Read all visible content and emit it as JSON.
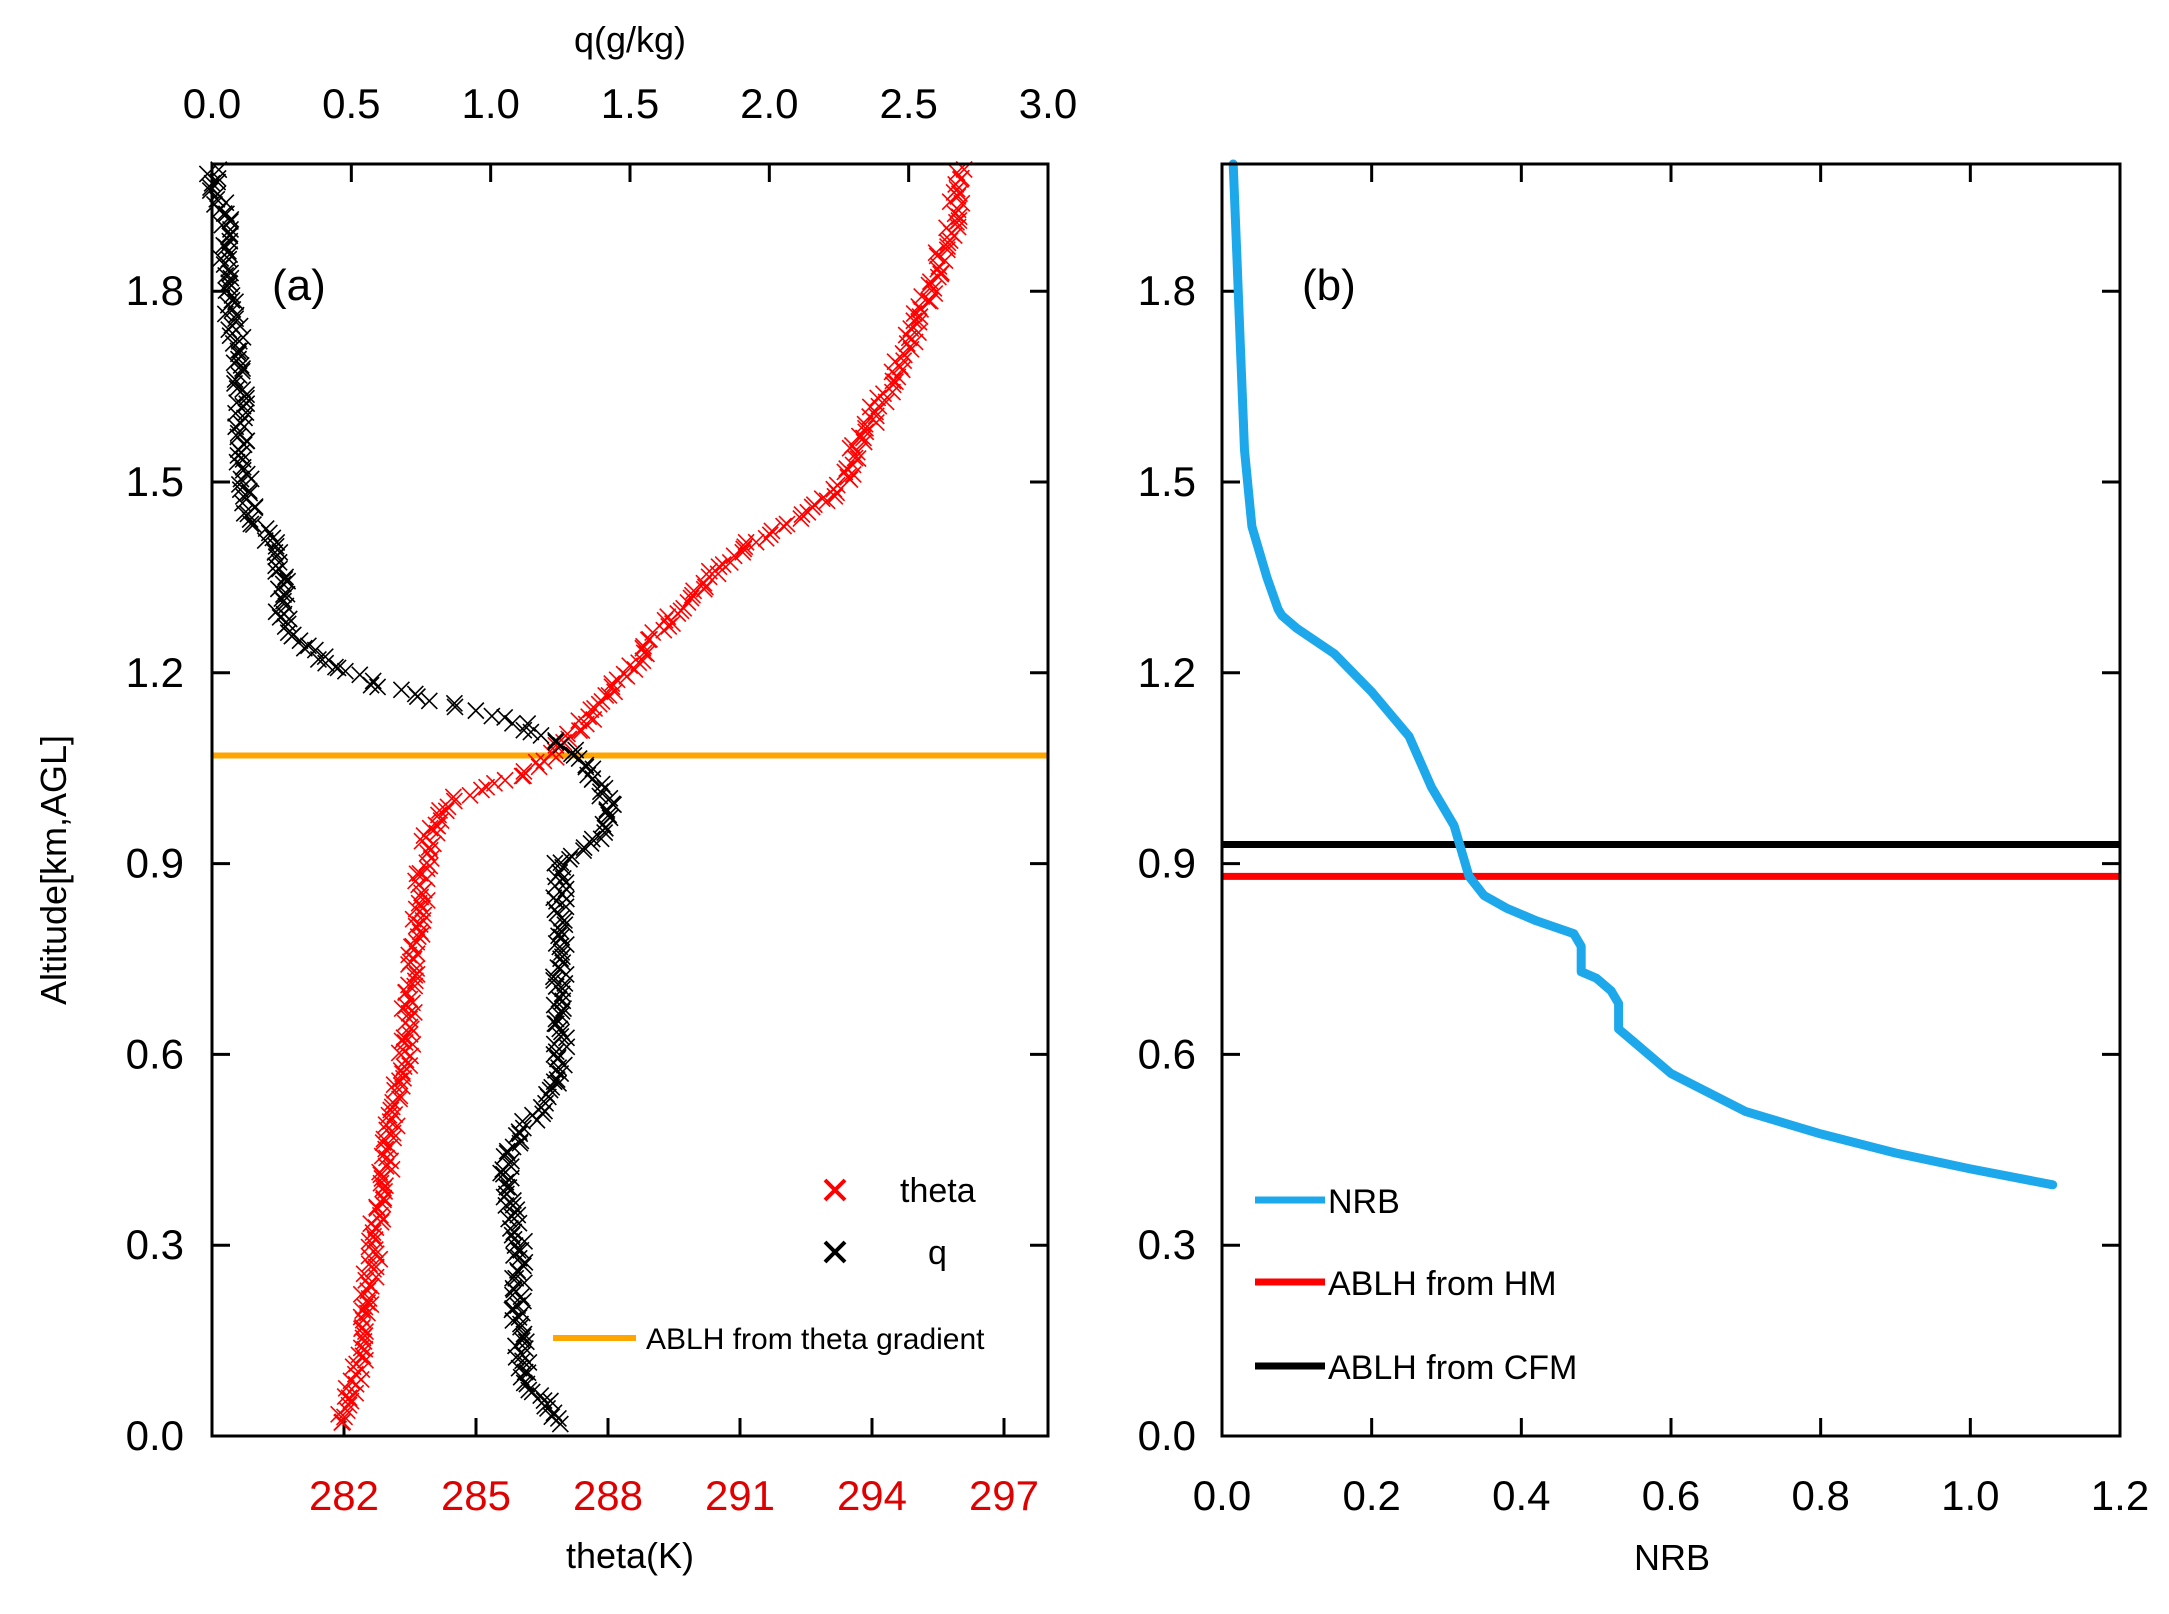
{
  "chart_data": [
    {
      "id": "a",
      "type": "scatter",
      "panel_label": "(a)",
      "ylabel": "Altitude[km,AGL]",
      "ylim": [
        0.0,
        2.0
      ],
      "yticks": [
        0.0,
        0.3,
        0.6,
        0.9,
        1.2,
        1.5,
        1.8
      ],
      "ytick_labels": [
        "0.0",
        "0.3",
        "0.6",
        "0.9",
        "1.2",
        "1.5",
        "1.8"
      ],
      "top_axis": {
        "label": "q(g/kg)",
        "range": [
          0.0,
          3.0
        ],
        "ticks": [
          0.0,
          0.5,
          1.0,
          1.5,
          2.0,
          2.5,
          3.0
        ],
        "tick_labels": [
          "0.0",
          "0.5",
          "1.0",
          "1.5",
          "2.0",
          "2.5",
          "3.0"
        ]
      },
      "bottom_axis": {
        "label": "theta(K)",
        "range": [
          279.0,
          298.0
        ],
        "ticks": [
          282,
          285,
          288,
          291,
          294,
          297
        ],
        "tick_labels": [
          "282",
          "285",
          "288",
          "291",
          "294",
          "297"
        ],
        "tick_color": "#e00000"
      },
      "series": [
        {
          "name": "theta",
          "axis": "bottom",
          "color": "#ff0000",
          "marker": "x",
          "profile": [
            [
              0.02,
              281.9
            ],
            [
              0.1,
              282.3
            ],
            [
              0.2,
              282.5
            ],
            [
              0.3,
              282.7
            ],
            [
              0.4,
              282.9
            ],
            [
              0.5,
              283.1
            ],
            [
              0.6,
              283.4
            ],
            [
              0.7,
              283.5
            ],
            [
              0.8,
              283.7
            ],
            [
              0.9,
              283.8
            ],
            [
              0.96,
              284.0
            ],
            [
              1.0,
              284.5
            ],
            [
              1.03,
              285.8
            ],
            [
              1.06,
              286.6
            ],
            [
              1.1,
              287.2
            ],
            [
              1.15,
              287.8
            ],
            [
              1.2,
              288.4
            ],
            [
              1.25,
              289.0
            ],
            [
              1.3,
              289.6
            ],
            [
              1.35,
              290.3
            ],
            [
              1.4,
              291.2
            ],
            [
              1.43,
              292.0
            ],
            [
              1.47,
              292.9
            ],
            [
              1.5,
              293.4
            ],
            [
              1.55,
              293.6
            ],
            [
              1.6,
              294.0
            ],
            [
              1.7,
              294.7
            ],
            [
              1.8,
              295.3
            ],
            [
              1.9,
              295.8
            ],
            [
              1.99,
              296.1
            ]
          ]
        },
        {
          "name": "q",
          "axis": "top",
          "color": "#000000",
          "marker": "x",
          "profile": [
            [
              0.02,
              1.25
            ],
            [
              0.05,
              1.2
            ],
            [
              0.1,
              1.12
            ],
            [
              0.2,
              1.1
            ],
            [
              0.3,
              1.1
            ],
            [
              0.4,
              1.05
            ],
            [
              0.45,
              1.08
            ],
            [
              0.5,
              1.15
            ],
            [
              0.55,
              1.22
            ],
            [
              0.6,
              1.25
            ],
            [
              0.7,
              1.25
            ],
            [
              0.8,
              1.25
            ],
            [
              0.9,
              1.25
            ],
            [
              0.93,
              1.38
            ],
            [
              0.98,
              1.43
            ],
            [
              1.03,
              1.38
            ],
            [
              1.08,
              1.28
            ],
            [
              1.12,
              1.1
            ],
            [
              1.15,
              0.85
            ],
            [
              1.18,
              0.6
            ],
            [
              1.21,
              0.45
            ],
            [
              1.25,
              0.3
            ],
            [
              1.3,
              0.25
            ],
            [
              1.35,
              0.25
            ],
            [
              1.4,
              0.22
            ],
            [
              1.45,
              0.14
            ],
            [
              1.5,
              0.12
            ],
            [
              1.6,
              0.1
            ],
            [
              1.7,
              0.1
            ],
            [
              1.8,
              0.05
            ],
            [
              1.9,
              0.05
            ],
            [
              1.99,
              0.0
            ]
          ]
        }
      ],
      "hlines": [
        {
          "name": "ABLH from theta gradient",
          "y": 1.07,
          "color": "#ffa500"
        }
      ],
      "legend": {
        "placement": "bottom-right",
        "entries": [
          "theta",
          "q",
          "ABLH from theta gradient"
        ]
      }
    },
    {
      "id": "b",
      "type": "line",
      "panel_label": "(b)",
      "xlabel": "NRB",
      "xlim": [
        0.0,
        1.2
      ],
      "xticks": [
        0.0,
        0.2,
        0.4,
        0.6,
        0.8,
        1.0,
        1.2
      ],
      "xtick_labels": [
        "0.0",
        "0.2",
        "0.4",
        "0.6",
        "0.8",
        "1.0",
        "1.2"
      ],
      "ylim": [
        0.0,
        2.0
      ],
      "yticks": [
        0.0,
        0.3,
        0.6,
        0.9,
        1.2,
        1.5,
        1.8
      ],
      "ytick_labels": [
        "0.0",
        "0.3",
        "0.6",
        "0.9",
        "1.2",
        "1.5",
        "1.8"
      ],
      "series": [
        {
          "name": "NRB",
          "color": "#1ea8ec",
          "points": [
            [
              0.015,
              2.0
            ],
            [
              0.02,
              1.85
            ],
            [
              0.025,
              1.7
            ],
            [
              0.03,
              1.55
            ],
            [
              0.04,
              1.43
            ],
            [
              0.06,
              1.35
            ],
            [
              0.075,
              1.3
            ],
            [
              0.08,
              1.29
            ],
            [
              0.1,
              1.27
            ],
            [
              0.15,
              1.23
            ],
            [
              0.2,
              1.17
            ],
            [
              0.25,
              1.1
            ],
            [
              0.28,
              1.02
            ],
            [
              0.31,
              0.96
            ],
            [
              0.32,
              0.92
            ],
            [
              0.33,
              0.88
            ],
            [
              0.35,
              0.85
            ],
            [
              0.38,
              0.83
            ],
            [
              0.42,
              0.81
            ],
            [
              0.47,
              0.79
            ],
            [
              0.48,
              0.77
            ],
            [
              0.48,
              0.73
            ],
            [
              0.5,
              0.72
            ],
            [
              0.52,
              0.7
            ],
            [
              0.53,
              0.68
            ],
            [
              0.53,
              0.64
            ],
            [
              0.55,
              0.62
            ],
            [
              0.6,
              0.57
            ],
            [
              0.7,
              0.51
            ],
            [
              0.8,
              0.475
            ],
            [
              0.9,
              0.445
            ],
            [
              1.0,
              0.42
            ],
            [
              1.11,
              0.395
            ]
          ]
        }
      ],
      "hlines": [
        {
          "name": "ABLH from HM",
          "y": 0.88,
          "color": "#ff0000"
        },
        {
          "name": "ABLH from CFM",
          "y": 0.93,
          "color": "#000000"
        }
      ],
      "legend": {
        "placement": "bottom-left",
        "entries": [
          "NRB",
          "ABLH from HM",
          "ABLH from CFM"
        ]
      }
    }
  ]
}
